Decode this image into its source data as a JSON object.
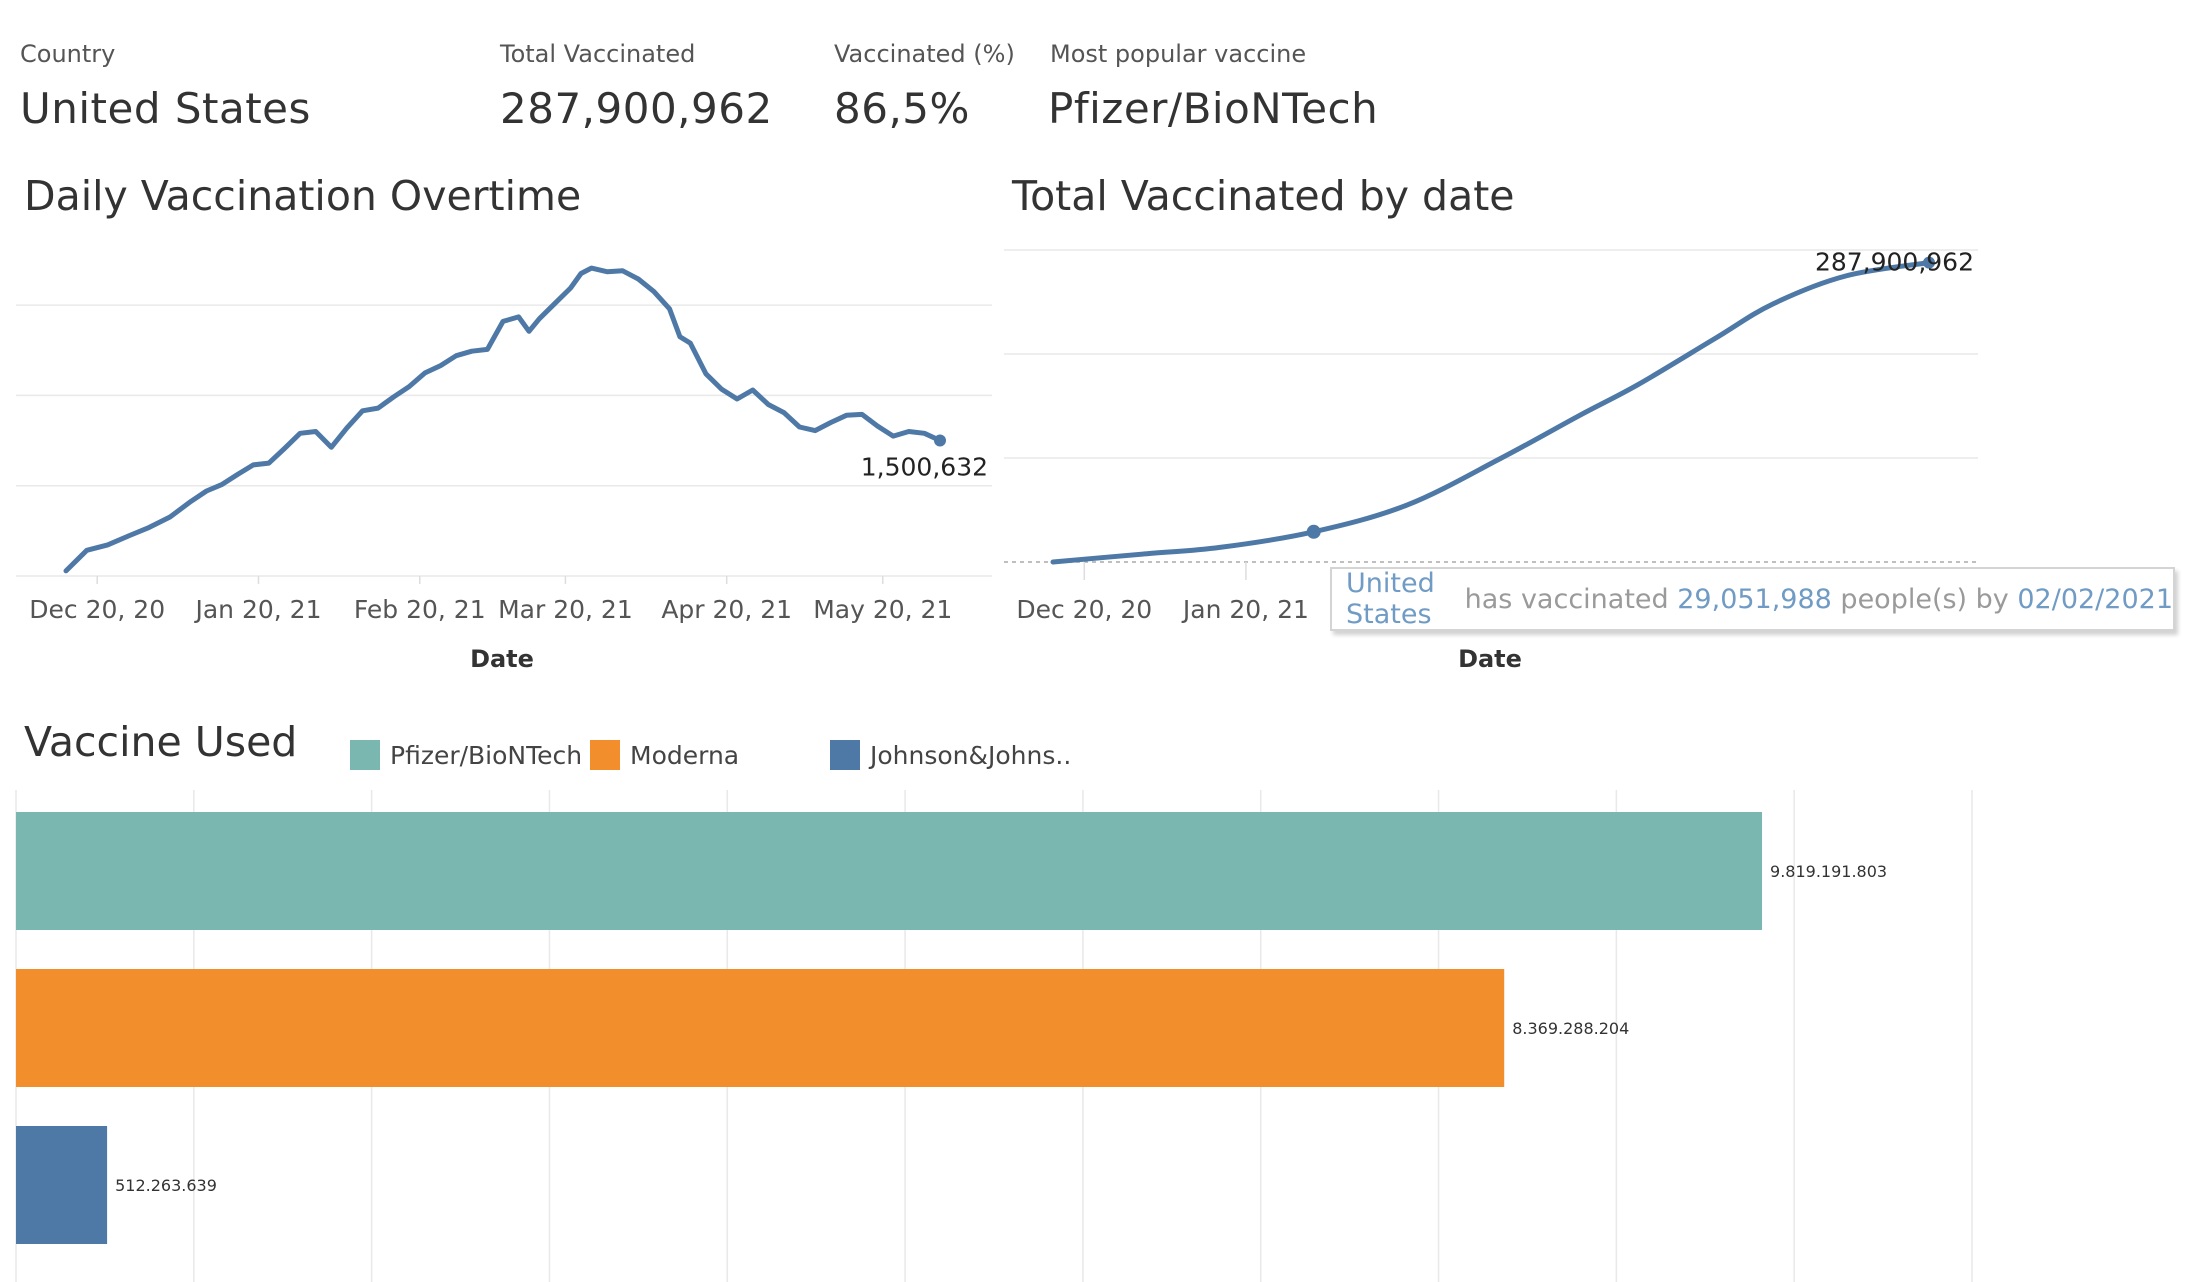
{
  "kpis": {
    "country_label": "Country",
    "country_value": "United States",
    "total_label": "Total Vaccinated",
    "total_value": "287,900,962",
    "pct_label": "Vaccinated (%)",
    "pct_value": "86,5%",
    "vaccine_label": "Most popular vaccine",
    "vaccine_value": "Pfizer/BioNTech"
  },
  "tooltip": {
    "country": "United States",
    "text1": " has vaccinated ",
    "count": "29,051,988",
    "text2": " people(s) by ",
    "date": "02/02/2021"
  },
  "colors": {
    "line": "#4e79a7",
    "pfizer": "#79b7b0",
    "moderna": "#f28e2b",
    "jnj": "#4e79a7",
    "grid": "#e9e9e9"
  },
  "chart_data": [
    {
      "type": "line",
      "title": "Daily Vaccination Overtime",
      "xlabel": "Date",
      "ylabel": "",
      "x_ticks": [
        "Dec 20, 20",
        "Jan 20, 21",
        "Feb 20, 21",
        "Mar 20, 21",
        "Apr 20, 21",
        "May 20, 21"
      ],
      "x": [
        "2020-12-14",
        "2020-12-18",
        "2020-12-22",
        "2020-12-26",
        "2020-12-30",
        "2021-01-03",
        "2021-01-07",
        "2021-01-10",
        "2021-01-13",
        "2021-01-16",
        "2021-01-19",
        "2021-01-22",
        "2021-01-25",
        "2021-01-28",
        "2021-01-31",
        "2021-02-03",
        "2021-02-06",
        "2021-02-09",
        "2021-02-12",
        "2021-02-15",
        "2021-02-18",
        "2021-02-21",
        "2021-02-24",
        "2021-02-27",
        "2021-03-02",
        "2021-03-05",
        "2021-03-08",
        "2021-03-11",
        "2021-03-13",
        "2021-03-15",
        "2021-03-18",
        "2021-03-21",
        "2021-03-23",
        "2021-03-25",
        "2021-03-28",
        "2021-03-31",
        "2021-04-03",
        "2021-04-06",
        "2021-04-09",
        "2021-04-11",
        "2021-04-13",
        "2021-04-16",
        "2021-04-19",
        "2021-04-22",
        "2021-04-25",
        "2021-04-28",
        "2021-05-01",
        "2021-05-04",
        "2021-05-07",
        "2021-05-10",
        "2021-05-13",
        "2021-05-16",
        "2021-05-19",
        "2021-05-22",
        "2021-05-25",
        "2021-05-28",
        "2021-05-31"
      ],
      "values": [
        57000,
        285000,
        345000,
        443000,
        538000,
        654000,
        826000,
        941000,
        1015000,
        1125000,
        1230000,
        1250000,
        1412000,
        1580000,
        1600000,
        1425000,
        1640000,
        1830000,
        1860000,
        1985000,
        2100000,
        2250000,
        2330000,
        2440000,
        2490000,
        2510000,
        2820000,
        2870000,
        2710000,
        2850000,
        3020000,
        3190000,
        3350000,
        3410000,
        3370000,
        3380000,
        3290000,
        3150000,
        2960000,
        2650000,
        2580000,
        2240000,
        2070000,
        1960000,
        2060000,
        1900000,
        1810000,
        1650000,
        1610000,
        1700000,
        1780000,
        1790000,
        1660000,
        1550000,
        1600000,
        1580000,
        1500632
      ],
      "end_label": "1,500,632",
      "grid": true
    },
    {
      "type": "line",
      "title": "Total Vaccinated by date",
      "xlabel": "Date",
      "ylabel": "",
      "x_ticks": [
        "Dec 20, 20",
        "Jan 20, 21"
      ],
      "x": [
        "2020-12-14",
        "2021-01-01",
        "2021-01-15",
        "2021-02-02",
        "2021-02-20",
        "2021-03-10",
        "2021-03-25",
        "2021-04-05",
        "2021-04-20",
        "2021-05-01",
        "2021-05-15",
        "2021-05-31"
      ],
      "values": [
        0,
        8000000,
        14000000,
        29051988,
        55000000,
        100000000,
        141000000,
        170000000,
        215000000,
        248000000,
        275000000,
        287900962
      ],
      "highlight": {
        "date": "2021-02-02",
        "value": 29051988
      },
      "end_label": "287,900,962",
      "grid": true
    },
    {
      "type": "bar",
      "orientation": "horizontal",
      "title": "Vaccine Used",
      "categories": [
        "Pfizer/BioNTech",
        "Moderna",
        "Johnson&Johns.."
      ],
      "values": [
        9819191803,
        8369288204,
        512263639
      ],
      "labels": [
        "9.819.191.803",
        "8.369.288.204",
        "512.263.639"
      ],
      "legend": [
        "Pfizer/BioNTech",
        "Moderna",
        "Johnson&Johns.."
      ],
      "legend_position": "top",
      "grid": true
    }
  ]
}
